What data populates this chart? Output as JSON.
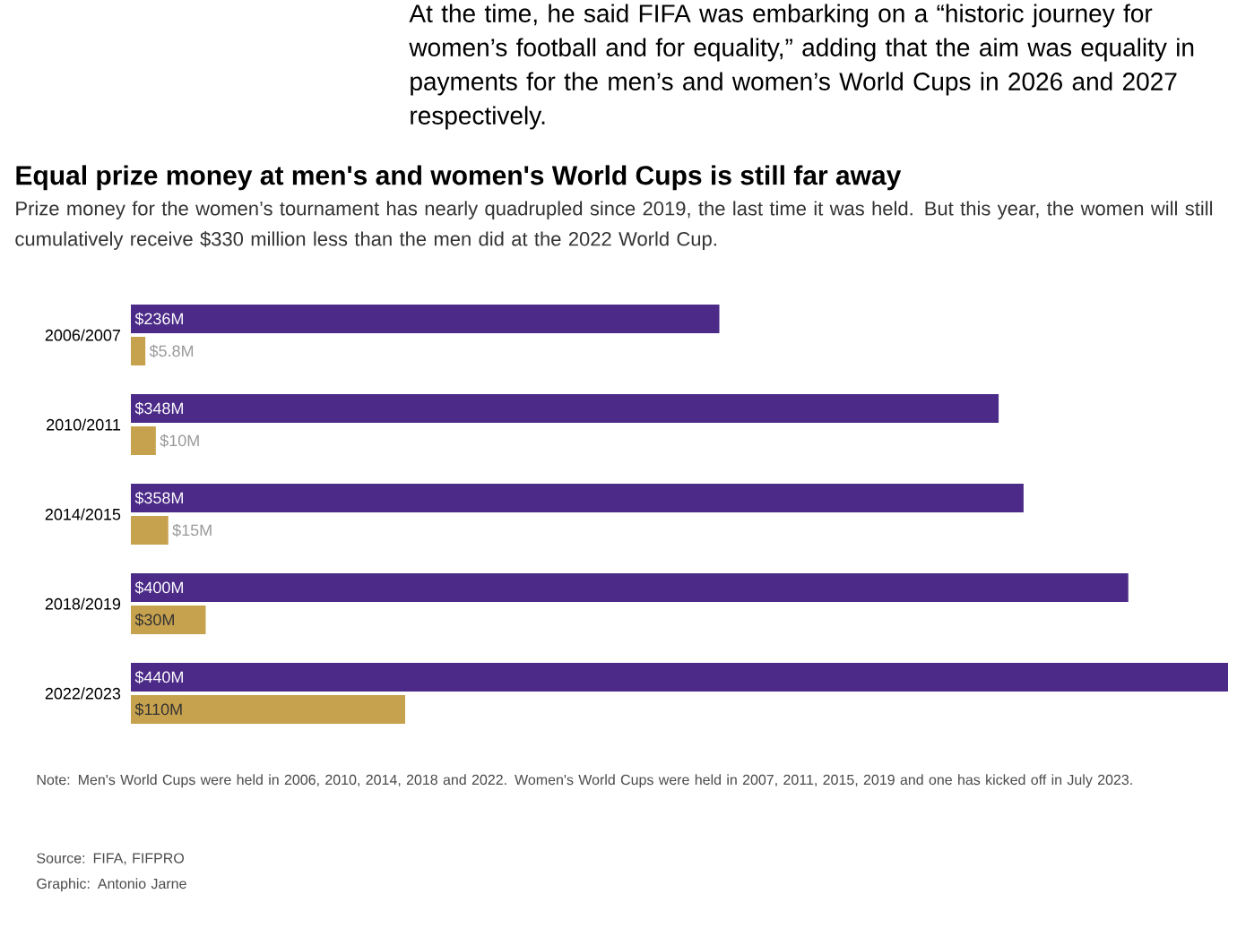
{
  "chart_data": {
    "type": "bar",
    "orientation": "horizontal",
    "title": "Equal prize money at men's and women's World Cups is still far away",
    "subtitle": "Prize money for the women’s tournament has nearly quadrupled since 2019, the last time it was held. But this year, the women will still cumulatively receive $330 million less than the men did at the 2022 World Cup.",
    "categories": [
      "2006/2007",
      "2010/2011",
      "2014/2015",
      "2018/2019",
      "2022/2023"
    ],
    "series": [
      {
        "color": "#4b2a88",
        "values": [
          236,
          348,
          358,
          400,
          440
        ],
        "value_labels": [
          "$236M",
          "$348M",
          "$358M",
          "$400M",
          "$440M"
        ]
      },
      {
        "color": "#c7a24e",
        "values": [
          5.8,
          10,
          15,
          30,
          110
        ],
        "value_labels": [
          "$5.8M",
          "$10M",
          "$15M",
          "$30M",
          "$110M"
        ]
      }
    ],
    "tick_labels": "y",
    "annotations": [
      "At the time, he said FIFA was embarking on a “historic journey for women’s football and for equality,” adding that the aim was equality in payments for the men’s and women’s World Cups in 2026 and 2027 respectively.",
      "Note: Men's World Cups were held in 2006, 2010, 2014, 2018 and 2022. Women's World Cups were held in 2007, 2011, 2015, 2019 and one has kicked off in July 2023.",
      "Source: FIFA, FIFPRO",
      "Graphic: Antonio Jarne"
    ]
  }
}
